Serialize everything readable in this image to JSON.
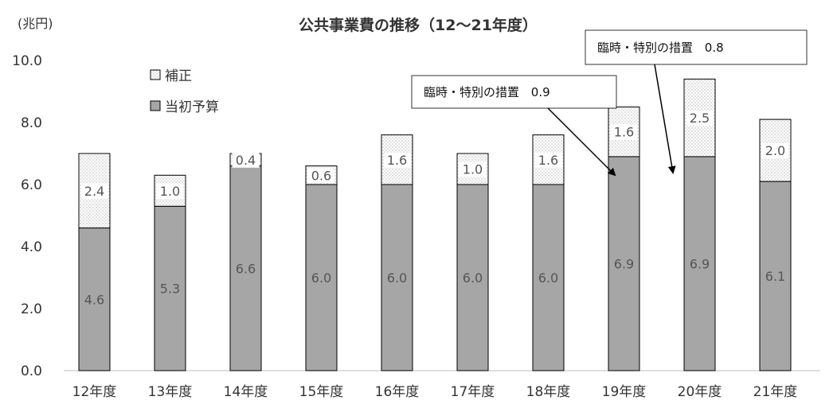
{
  "chart_data": {
    "type": "bar",
    "stacked": true,
    "title": "公共事業費の推移（12〜21年度）",
    "unit_label": "(兆円)",
    "categories": [
      "12年度",
      "13年度",
      "14年度",
      "15年度",
      "16年度",
      "17年度",
      "18年度",
      "19年度",
      "20年度",
      "21年度"
    ],
    "series": [
      {
        "name": "当初予算",
        "values": [
          4.6,
          5.3,
          6.6,
          6.0,
          6.0,
          6.0,
          6.0,
          6.9,
          6.9,
          6.1
        ],
        "color": "#a6a6a6",
        "pattern": "solid"
      },
      {
        "name": "補正",
        "values": [
          2.4,
          1.0,
          0.4,
          0.6,
          1.6,
          1.0,
          1.6,
          1.6,
          2.5,
          2.0
        ],
        "color": "#ffffff",
        "pattern": "dotted"
      }
    ],
    "ylim": [
      0,
      10
    ],
    "yticks": [
      "0.0",
      "2.0",
      "4.0",
      "6.0",
      "8.0",
      "10.0"
    ],
    "grid": false,
    "legend_position": "top-left",
    "annotations": [
      {
        "text": "臨時・特別の措置",
        "value": "0.9",
        "points_to": "19年度"
      },
      {
        "text": "臨時・特別の措置",
        "value": "0.8",
        "points_to": "20年度"
      }
    ]
  }
}
